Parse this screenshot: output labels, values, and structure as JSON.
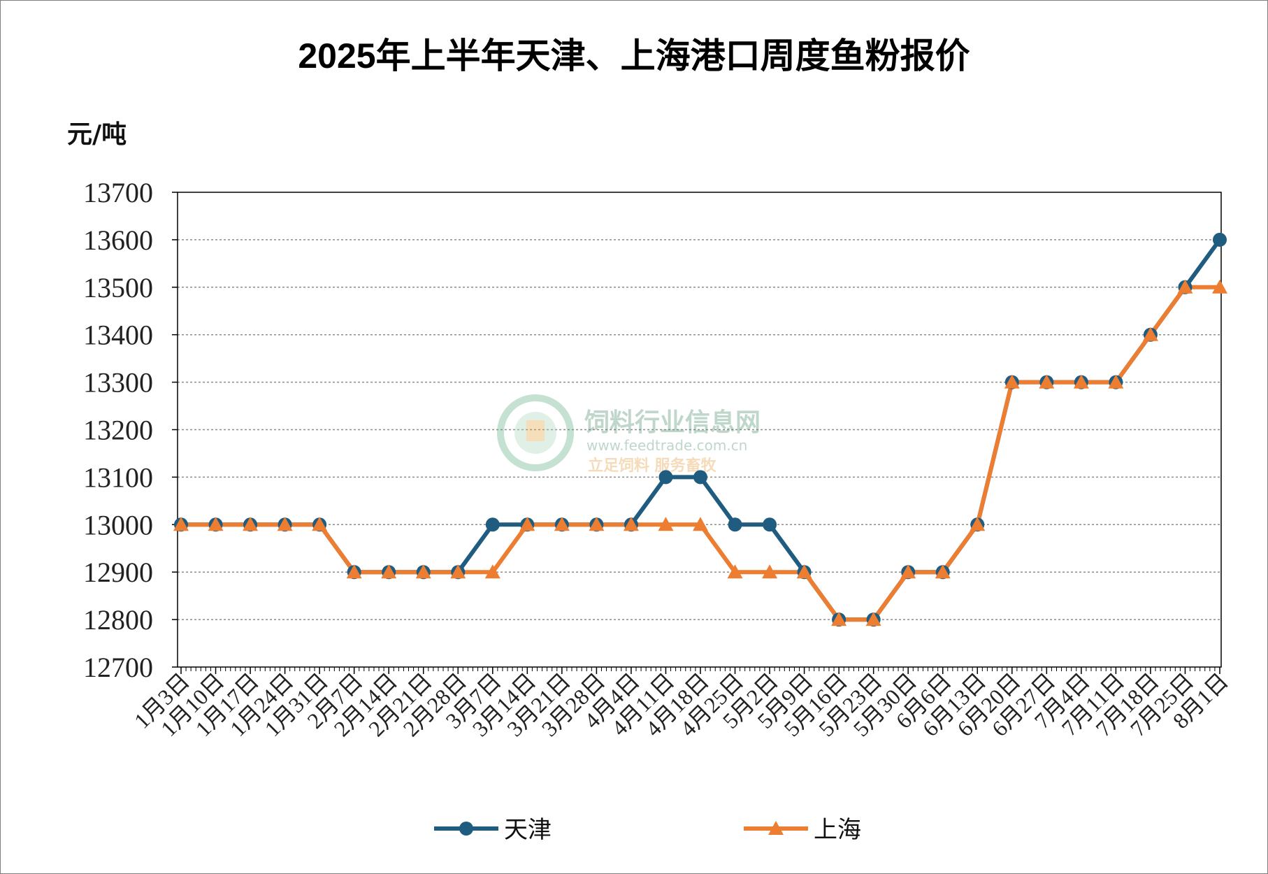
{
  "chart_data": {
    "type": "line",
    "title": "2025年上半年天津、上海港口周度鱼粉报价",
    "ylabel": "元/吨",
    "ylim": [
      12700,
      13700
    ],
    "yticks": [
      13700,
      13600,
      13500,
      13400,
      13300,
      13200,
      13100,
      13000,
      12900,
      12800,
      12700
    ],
    "grid": true,
    "legend_position": "bottom",
    "categories": [
      "1月3日",
      "1月10日",
      "1月17日",
      "1月24日",
      "1月31日",
      "2月7日",
      "2月14日",
      "2月21日",
      "2月28日",
      "3月7日",
      "3月14日",
      "3月21日",
      "3月28日",
      "4月4日",
      "4月11日",
      "4月18日",
      "4月25日",
      "5月2日",
      "5月9日",
      "5月16日",
      "5月23日",
      "5月30日",
      "6月6日",
      "6月13日",
      "6月20日",
      "6月27日",
      "7月4日",
      "7月11日",
      "7月18日",
      "7月25日",
      "8月1日"
    ],
    "series": [
      {
        "name": "天津",
        "color": "#1f5c80",
        "marker": "circle",
        "values": [
          13000,
          13000,
          13000,
          13000,
          13000,
          12900,
          12900,
          12900,
          12900,
          13000,
          13000,
          13000,
          13000,
          13000,
          13100,
          13100,
          13000,
          13000,
          12900,
          12800,
          12800,
          12900,
          12900,
          13000,
          13300,
          13300,
          13300,
          13300,
          13400,
          13500,
          13600
        ]
      },
      {
        "name": "上海",
        "color": "#ed7d31",
        "marker": "triangle",
        "values": [
          13000,
          13000,
          13000,
          13000,
          13000,
          12900,
          12900,
          12900,
          12900,
          12900,
          13000,
          13000,
          13000,
          13000,
          13000,
          13000,
          12900,
          12900,
          12900,
          12800,
          12800,
          12900,
          12900,
          13000,
          13300,
          13300,
          13300,
          13300,
          13400,
          13500,
          13500
        ]
      }
    ]
  },
  "watermark": {
    "name": "饲料行业信息网",
    "url": "www.feedtrade.com.cn",
    "slogan": "立足饲料  服务畜牧"
  }
}
